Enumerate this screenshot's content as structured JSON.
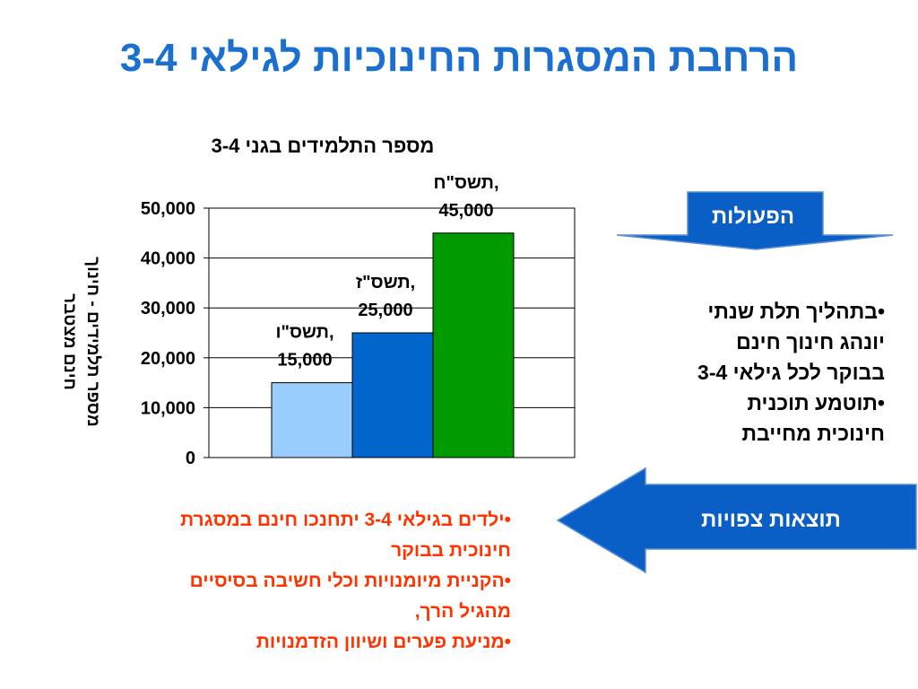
{
  "slide": {
    "title": "הרחבת המסגרות החינוכיות לגילאי 3-4"
  },
  "chart_data": {
    "type": "bar",
    "title": "מספר התלמידים בגני 3-4",
    "ylabel": "מספר תלמידים - חינוך חינם מצטבר",
    "xlabel": "",
    "ylim": [
      0,
      50000
    ],
    "yticks": [
      "0",
      "10,000",
      "20,000",
      "30,000",
      "40,000",
      "50,000"
    ],
    "yticks_values": [
      0,
      10000,
      20000,
      30000,
      40000,
      50000
    ],
    "grid": true,
    "categories": [
      "תשס\"ו",
      "תשס\"ז",
      "תשס\"ח"
    ],
    "values": [
      15000,
      25000,
      45000
    ],
    "data_labels": [
      {
        "line1": "תשס\"ו,",
        "line2": "15,000"
      },
      {
        "line1": "תשס\"ז,",
        "line2": "25,000"
      },
      {
        "line1": "תשס\"ח,",
        "line2": "45,000"
      }
    ],
    "colors": [
      "#99ccff",
      "#0066cc",
      "#009900"
    ]
  },
  "actions": {
    "label": "הפעולות",
    "lines": [
      "•בתהליך תלת שנתי",
      "יונהג חינוך חינם",
      "בבוקר לכל גילאי 3-4",
      "•תוטמע תוכנית",
      "חינוכית מחייבת"
    ]
  },
  "results": {
    "label": "תוצאות צפויות",
    "lines": [
      "•ילדים בגילאי 3-4 יתחנכו חינם במסגרת",
      "חינוכית בבוקר",
      "•הקניית מיומנויות וכלי חשיבה בסיסיים",
      "מהגיל הרך,",
      "•מניעת פערים ושיוון הזדמנויות"
    ]
  },
  "colors": {
    "title": "#1a6fd1",
    "shape_fill": "#0a5fc6",
    "results_text": "#ff3300"
  }
}
